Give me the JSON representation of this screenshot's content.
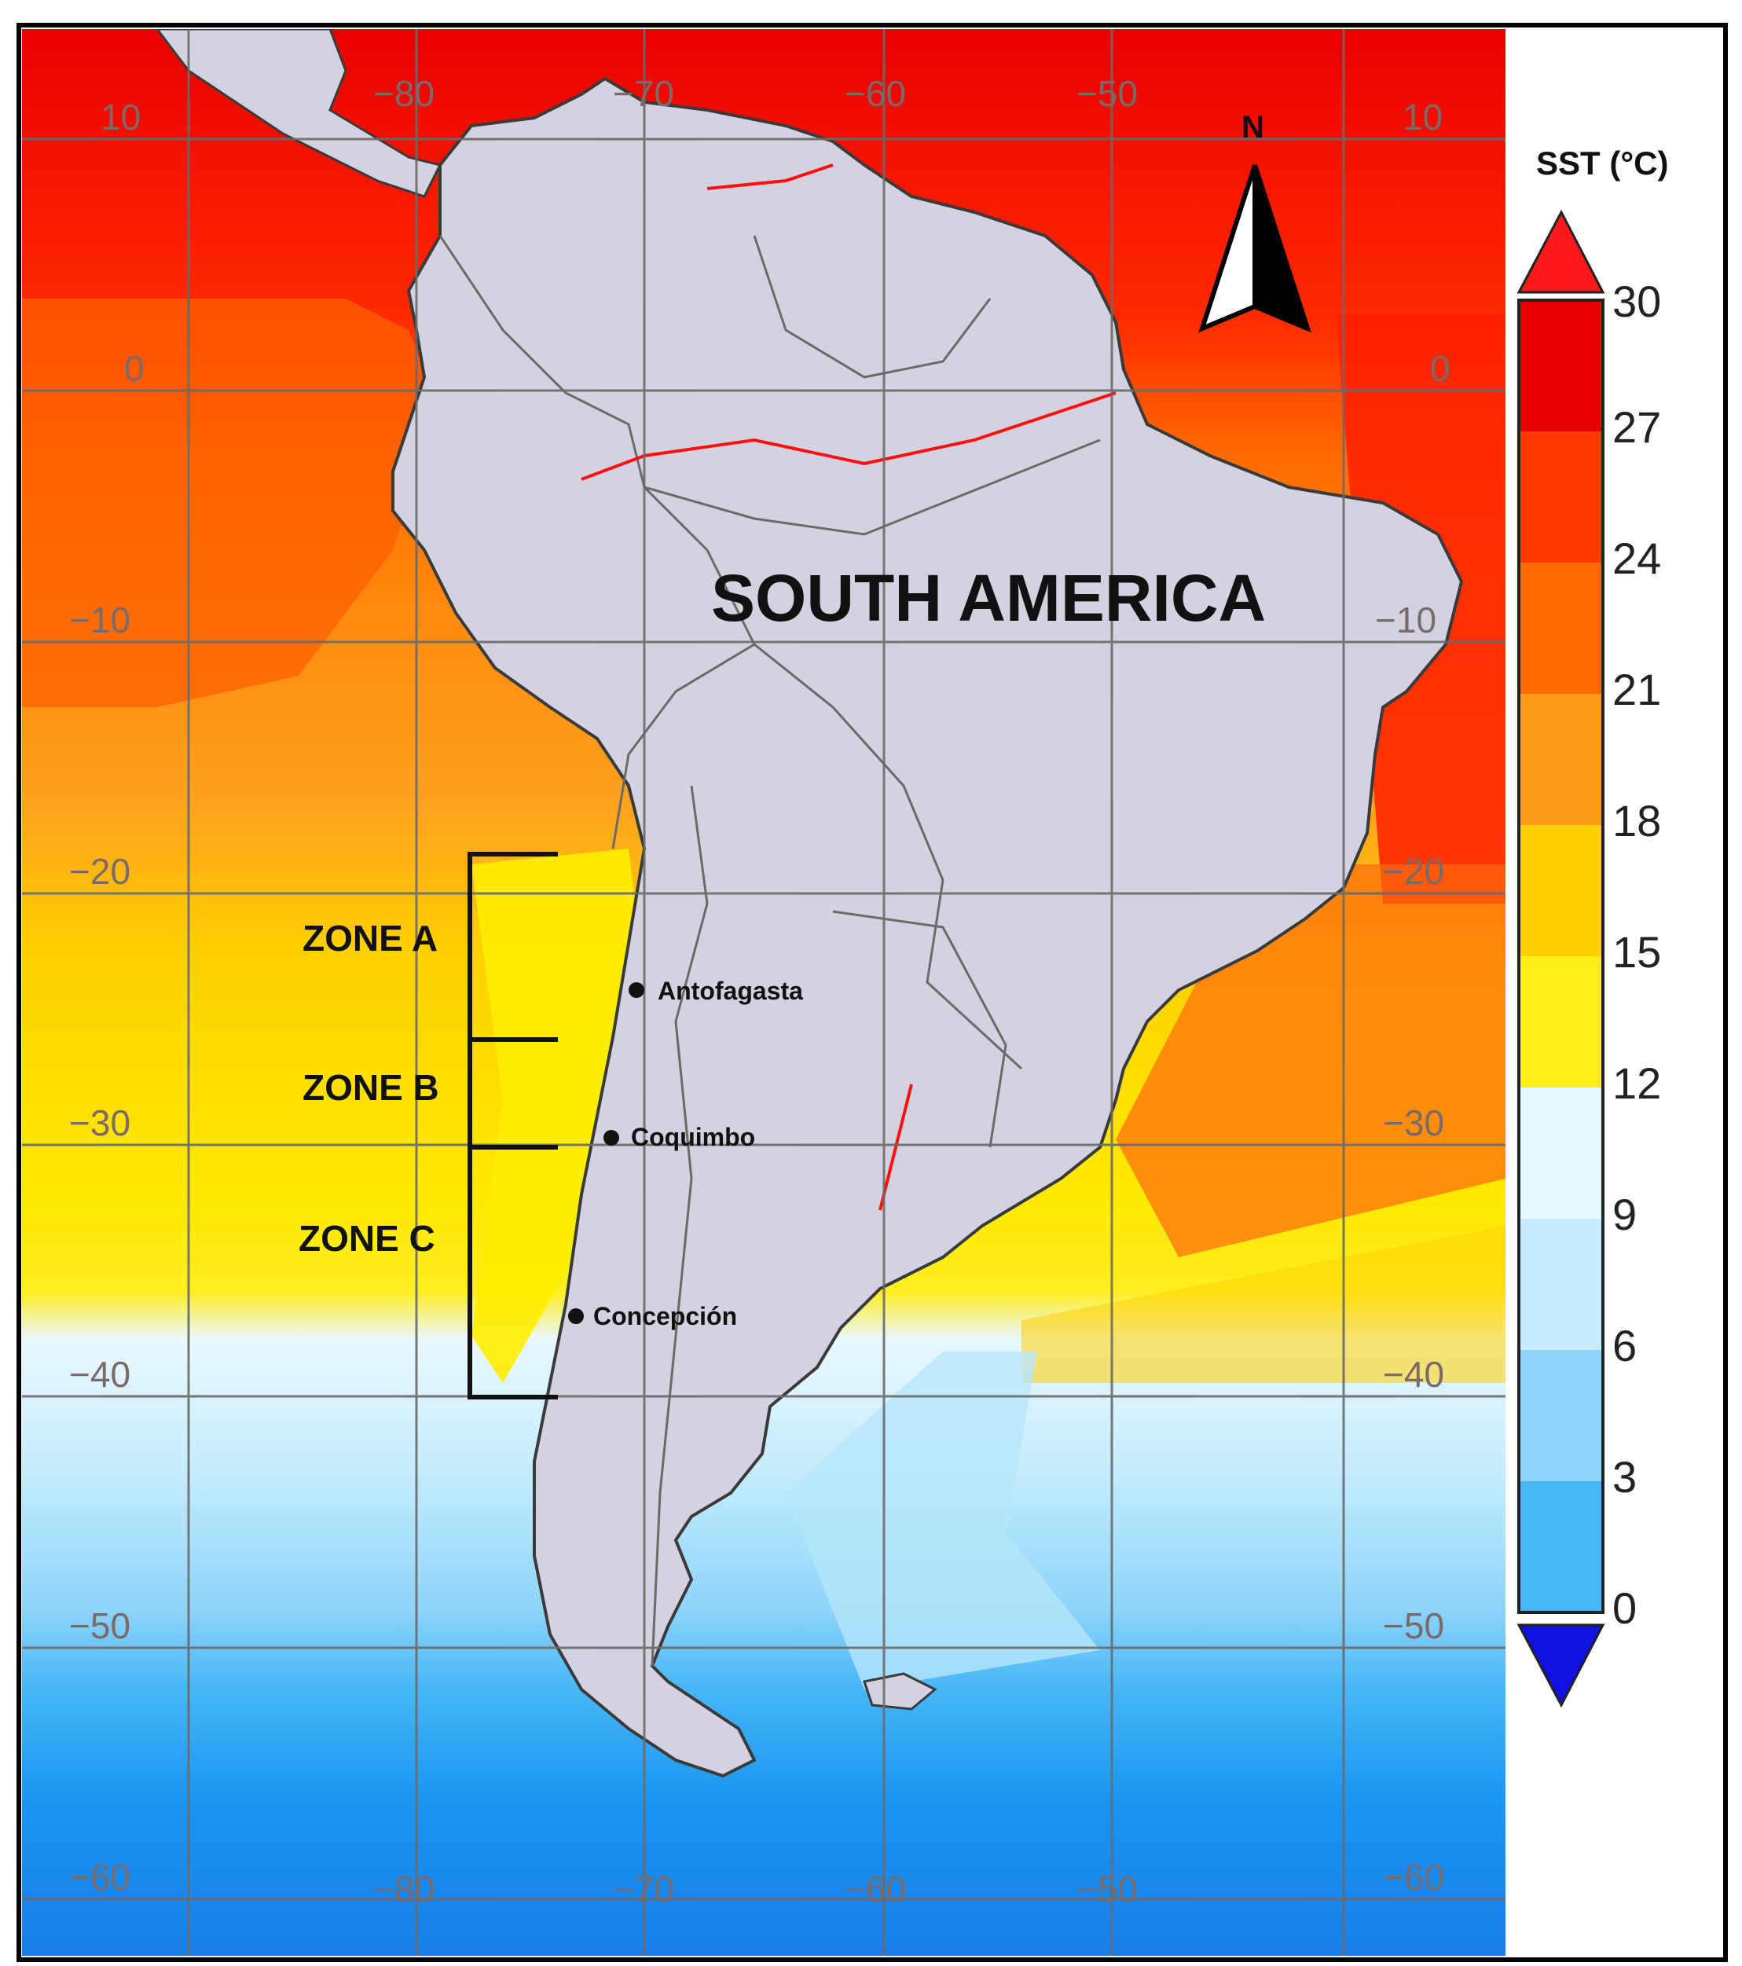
{
  "map": {
    "region_label": "SOUTH AMERICA",
    "north_label": "N",
    "colorbar_title": "SST (°C)",
    "lat_labels": [
      "10",
      "0",
      "−10",
      "−20",
      "−30",
      "−40",
      "−50",
      "−60"
    ],
    "lon_labels_top": [
      "−80",
      "−70",
      "−60",
      "−50"
    ],
    "lon_labels_bottom": [
      "−80",
      "−70",
      "−60",
      "−50"
    ],
    "colorbar_ticks": [
      "30",
      "27",
      "24",
      "21",
      "18",
      "15",
      "12",
      "9",
      "6",
      "3",
      "0"
    ],
    "colorbar_colors": [
      "#e80000",
      "#ff3a00",
      "#ff6a00",
      "#ff9a1c",
      "#ffd100",
      "#ffee1a",
      "#e8f8ff",
      "#c4ecfc",
      "#8fd4fa",
      "#48b7f5",
      "#1a8ff0"
    ],
    "colorbar_over": "#ff1a1a",
    "colorbar_under": "#1010e0",
    "land_color": "#d3d2e0",
    "zones": [
      {
        "label": "ZONE A"
      },
      {
        "label": "ZONE B"
      },
      {
        "label": "ZONE C"
      }
    ],
    "cities": [
      {
        "name": "Antofagasta"
      },
      {
        "name": "Coquimbo"
      },
      {
        "name": "Concepción"
      }
    ]
  }
}
